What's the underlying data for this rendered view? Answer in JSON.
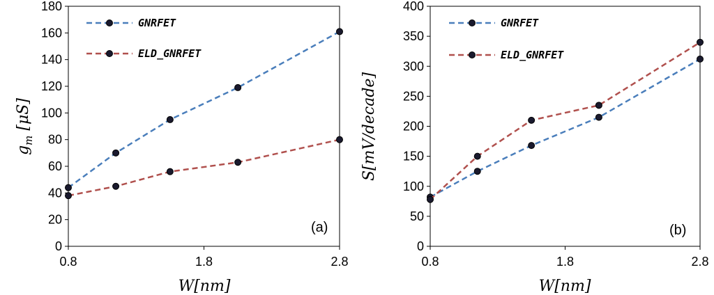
{
  "chart_data": [
    {
      "type": "line",
      "panel_label": "(a)",
      "xlabel": "W[nm]",
      "ylabel": "g_m [μS]",
      "ylabel_parts": {
        "var": "g",
        "sub": "m",
        "unit": " [μS]"
      },
      "xlim": [
        0.8,
        2.8
      ],
      "ylim": [
        0,
        180
      ],
      "xticks": [
        0.8,
        1.8,
        2.8
      ],
      "xtick_labels": [
        "0.8",
        "1.8",
        "2.8"
      ],
      "yticks": [
        0,
        20,
        40,
        60,
        80,
        100,
        120,
        140,
        160,
        180
      ],
      "legend_position": "top-left",
      "series": [
        {
          "name": "GNRFET",
          "color": "#4a7ebb",
          "x": [
            0.8,
            1.15,
            1.55,
            2.05,
            2.8
          ],
          "values": [
            44,
            70,
            95,
            119,
            161
          ]
        },
        {
          "name": "ELD_GNRFET",
          "color": "#b0504d",
          "x": [
            0.8,
            1.15,
            1.55,
            2.05,
            2.8
          ],
          "values": [
            38,
            45,
            56,
            63,
            80
          ]
        }
      ]
    },
    {
      "type": "line",
      "panel_label": "(b)",
      "xlabel": "W[nm]",
      "ylabel": "S[mV/decade]",
      "xlim": [
        0.8,
        2.8
      ],
      "ylim": [
        0,
        400
      ],
      "xticks": [
        0.8,
        1.8,
        2.8
      ],
      "xtick_labels": [
        "0.8",
        "1.8",
        "2.8"
      ],
      "yticks": [
        0,
        50,
        100,
        150,
        200,
        250,
        300,
        350,
        400
      ],
      "legend_position": "top-left",
      "series": [
        {
          "name": "GNRFET",
          "color": "#4a7ebb",
          "x": [
            0.8,
            1.15,
            1.55,
            2.05,
            2.8
          ],
          "values": [
            82,
            125,
            168,
            215,
            312
          ]
        },
        {
          "name": "ELD_GNRFET",
          "color": "#b0504d",
          "x": [
            0.8,
            1.15,
            1.55,
            2.05,
            2.8
          ],
          "values": [
            78,
            150,
            210,
            235,
            340
          ]
        }
      ]
    }
  ]
}
